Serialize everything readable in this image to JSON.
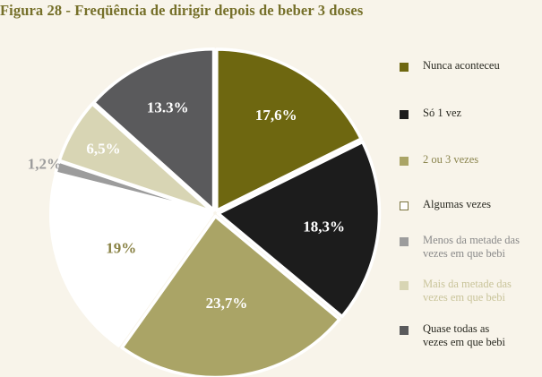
{
  "title": "Figura 28 - Freqüência de dirigir depois de beber 3 doses",
  "chart_data": {
    "type": "pie",
    "title": "Figura 28 - Freqüência de dirigir depois de beber 3 doses",
    "start_angle_deg": 0,
    "direction": "clockwise",
    "legend_position": "right",
    "slices": [
      {
        "name": "Nunca aconteceu",
        "value": 17.6,
        "label": "17,6%",
        "color": "#6e6710",
        "label_color": "#ffffff",
        "label_outside": false
      },
      {
        "name": "Só 1 vez",
        "value": 18.3,
        "label": "18,3%",
        "color": "#1c1c1c",
        "label_color": "#ffffff",
        "label_outside": false
      },
      {
        "name": "2 ou 3 vezes",
        "value": 23.7,
        "label": "23,7%",
        "color": "#aaa466",
        "label_color": "#ffffff",
        "label_outside": false
      },
      {
        "name": "Algumas vezes",
        "value": 19.0,
        "label": "19%",
        "color": "#ffffff",
        "outline": "#8a8346",
        "label_color": "#8a8346",
        "label_outside": false
      },
      {
        "name": "Menos da metade das vezes em que bebi",
        "value": 1.2,
        "label": "1,2%",
        "color": "#9c9c9c",
        "label_color": "#9c9c9c",
        "label_outside": true
      },
      {
        "name": "Mais da metade das vezes em que bebi",
        "value": 6.5,
        "label": "6,5%",
        "color": "#d8d5b4",
        "label_color": "#ffffff",
        "label_outside": false
      },
      {
        "name": "Quase todas as vezes em que bebi",
        "value": 13.3,
        "label": "13.3%",
        "color": "#5a5a5c",
        "label_color": "#ffffff",
        "label_outside": false
      }
    ]
  },
  "legend": [
    {
      "label": "Nunca aconteceu",
      "color": "#6e6710",
      "text_color": "#2a2a22"
    },
    {
      "label": "Só 1 vez",
      "color": "#1c1c1c",
      "text_color": "#2a2a22"
    },
    {
      "label": "2 ou 3 vezes",
      "color": "#aaa466",
      "text_color": "#8c8650"
    },
    {
      "label": "Algumas vezes",
      "color": "#ffffff",
      "outline": "#7a7440",
      "text_color": "#2a2a22"
    },
    {
      "label": "Menos da metade das\nvezes em que bebi",
      "color": "#9c9c9c",
      "text_color": "#8a8a8a"
    },
    {
      "label": "Mais da metade das\nvezes em que bebi",
      "color": "#d8d5b4",
      "text_color": "#c9c49a"
    },
    {
      "label": "Quase todas as\n vezes em que bebi",
      "color": "#5a5a5c",
      "text_color": "#2a2a22"
    }
  ]
}
